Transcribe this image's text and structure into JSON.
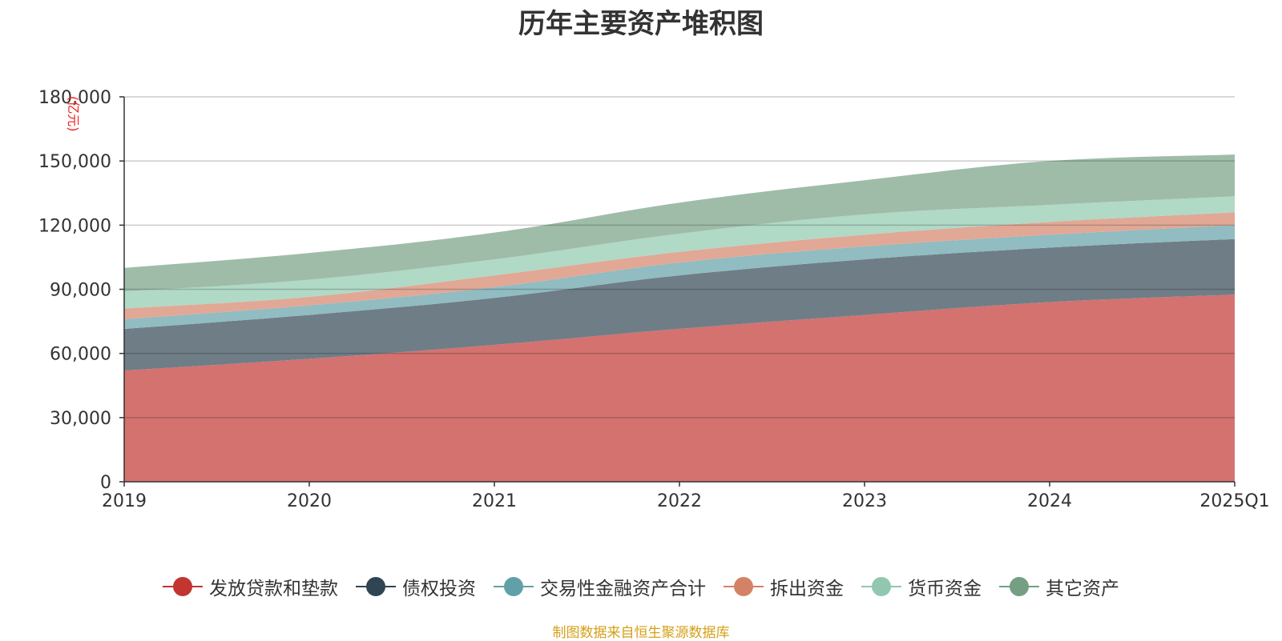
{
  "chart_data": {
    "type": "area",
    "stacked": true,
    "title": "历年主要资产堆积图",
    "unit": "(亿元)",
    "categories": [
      "2019",
      "2020",
      "2021",
      "2022",
      "2023",
      "2024",
      "2025Q1"
    ],
    "ylim": [
      0,
      180000
    ],
    "yticks": [
      "0",
      "30,000",
      "60,000",
      "90,000",
      "120,000",
      "150,000",
      "180,000"
    ],
    "grid": true,
    "legend_position": "bottom",
    "series": [
      {
        "name": "发放贷款和垫款",
        "color": "#c23531",
        "fill": "#d47270",
        "values": [
          52000,
          57500,
          64000,
          71500,
          78000,
          84000,
          87500
        ]
      },
      {
        "name": "债权投资",
        "color": "#2f4554",
        "fill": "#6f7d87",
        "values": [
          19500,
          20500,
          22000,
          25000,
          26000,
          25500,
          26000
        ]
      },
      {
        "name": "交易性金融资产合计",
        "color": "#61a0a8",
        "fill": "#90bcc2",
        "values": [
          4500,
          4500,
          5000,
          6000,
          6000,
          6000,
          6500
        ]
      },
      {
        "name": "拆出资金",
        "color": "#d48265",
        "fill": "#e1a896",
        "values": [
          5000,
          4000,
          5500,
          5000,
          5500,
          6000,
          6000
        ]
      },
      {
        "name": "货币资金",
        "color": "#91c7ae",
        "fill": "#b0d9c6",
        "values": [
          8000,
          8000,
          7500,
          8500,
          9500,
          8000,
          7500
        ]
      },
      {
        "name": "其它资产",
        "color": "#749f83",
        "fill": "#9fbca8",
        "values": [
          11000,
          12500,
          12500,
          14500,
          16000,
          20500,
          19500
        ]
      }
    ],
    "source_note": "制图数据来自恒生聚源数据库"
  }
}
